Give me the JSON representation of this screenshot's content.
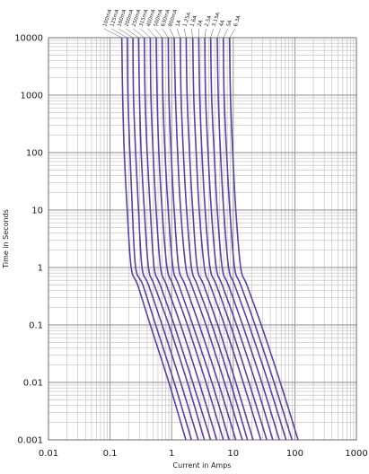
{
  "chart_data": {
    "type": "line",
    "title": "",
    "xlabel": "Current in Amps",
    "ylabel": "Time in Seconds",
    "x_scale": "log",
    "y_scale": "log",
    "xlim": [
      0.01,
      1000
    ],
    "ylim": [
      0.001,
      10000
    ],
    "x_ticks": [
      "0.01",
      "0.1",
      "1",
      "10",
      "100",
      "1000"
    ],
    "y_ticks": [
      "10000",
      "1000",
      "100",
      "10",
      "1",
      "0.1",
      "0.01",
      "0.001"
    ],
    "grid": true,
    "line_color": "#5b3fa6",
    "series": [
      {
        "name": "100mA",
        "points": [
          [
            0.155,
            10000
          ],
          [
            0.16,
            1000
          ],
          [
            0.17,
            100
          ],
          [
            0.19,
            10
          ],
          [
            0.22,
            1
          ],
          [
            0.28,
            0.5
          ],
          [
            0.45,
            0.1
          ],
          [
            0.9,
            0.01
          ],
          [
            1.7,
            0.001
          ]
        ]
      },
      {
        "name": "125mA",
        "points": [
          [
            0.19,
            10000
          ],
          [
            0.195,
            1000
          ],
          [
            0.21,
            100
          ],
          [
            0.23,
            10
          ],
          [
            0.26,
            1
          ],
          [
            0.34,
            0.5
          ],
          [
            0.55,
            0.1
          ],
          [
            1.1,
            0.01
          ],
          [
            2.1,
            0.001
          ]
        ]
      },
      {
        "name": "160mA",
        "points": [
          [
            0.235,
            10000
          ],
          [
            0.24,
            1000
          ],
          [
            0.26,
            100
          ],
          [
            0.29,
            10
          ],
          [
            0.33,
            1
          ],
          [
            0.42,
            0.5
          ],
          [
            0.7,
            0.1
          ],
          [
            1.4,
            0.01
          ],
          [
            2.7,
            0.001
          ]
        ]
      },
      {
        "name": "200mA",
        "points": [
          [
            0.29,
            10000
          ],
          [
            0.3,
            1000
          ],
          [
            0.32,
            100
          ],
          [
            0.36,
            10
          ],
          [
            0.42,
            1
          ],
          [
            0.52,
            0.5
          ],
          [
            0.9,
            0.1
          ],
          [
            1.8,
            0.01
          ],
          [
            3.4,
            0.001
          ]
        ]
      },
      {
        "name": "250mA",
        "points": [
          [
            0.36,
            10000
          ],
          [
            0.37,
            1000
          ],
          [
            0.4,
            100
          ],
          [
            0.45,
            10
          ],
          [
            0.52,
            1
          ],
          [
            0.65,
            0.5
          ],
          [
            1.1,
            0.1
          ],
          [
            2.2,
            0.01
          ],
          [
            4.3,
            0.001
          ]
        ]
      },
      {
        "name": "315mA",
        "points": [
          [
            0.45,
            10000
          ],
          [
            0.46,
            1000
          ],
          [
            0.5,
            100
          ],
          [
            0.56,
            10
          ],
          [
            0.66,
            1
          ],
          [
            0.82,
            0.5
          ],
          [
            1.4,
            0.1
          ],
          [
            2.8,
            0.01
          ],
          [
            5.4,
            0.001
          ]
        ]
      },
      {
        "name": "400mA",
        "points": [
          [
            0.56,
            10000
          ],
          [
            0.58,
            1000
          ],
          [
            0.62,
            100
          ],
          [
            0.7,
            10
          ],
          [
            0.84,
            1
          ],
          [
            1.05,
            0.5
          ],
          [
            1.8,
            0.1
          ],
          [
            3.6,
            0.01
          ],
          [
            6.9,
            0.001
          ]
        ]
      },
      {
        "name": "500mA",
        "points": [
          [
            0.7,
            10000
          ],
          [
            0.72,
            1000
          ],
          [
            0.78,
            100
          ],
          [
            0.88,
            10
          ],
          [
            1.05,
            1
          ],
          [
            1.3,
            0.5
          ],
          [
            2.2,
            0.1
          ],
          [
            4.5,
            0.01
          ],
          [
            8.6,
            0.001
          ]
        ]
      },
      {
        "name": "630mA",
        "points": [
          [
            0.88,
            10000
          ],
          [
            0.9,
            1000
          ],
          [
            0.98,
            100
          ],
          [
            1.1,
            10
          ],
          [
            1.3,
            1
          ],
          [
            1.65,
            0.5
          ],
          [
            2.8,
            0.1
          ],
          [
            5.7,
            0.01
          ],
          [
            11,
            0.001
          ]
        ]
      },
      {
        "name": "800mA",
        "points": [
          [
            1.1,
            10000
          ],
          [
            1.15,
            1000
          ],
          [
            1.25,
            100
          ],
          [
            1.4,
            10
          ],
          [
            1.7,
            1
          ],
          [
            2.1,
            0.5
          ],
          [
            3.6,
            0.1
          ],
          [
            7.2,
            0.01
          ],
          [
            14,
            0.001
          ]
        ]
      },
      {
        "name": "1A",
        "points": [
          [
            1.38,
            10000
          ],
          [
            1.42,
            1000
          ],
          [
            1.55,
            100
          ],
          [
            1.75,
            10
          ],
          [
            2.1,
            1
          ],
          [
            2.6,
            0.5
          ],
          [
            4.5,
            0.1
          ],
          [
            9,
            0.01
          ],
          [
            17,
            0.001
          ]
        ]
      },
      {
        "name": "1.25A",
        "points": [
          [
            1.72,
            10000
          ],
          [
            1.78,
            1000
          ],
          [
            1.95,
            100
          ],
          [
            2.2,
            10
          ],
          [
            2.6,
            1
          ],
          [
            3.3,
            0.5
          ],
          [
            5.6,
            0.1
          ],
          [
            11,
            0.01
          ],
          [
            21,
            0.001
          ]
        ]
      },
      {
        "name": "1.6A",
        "points": [
          [
            2.2,
            10000
          ],
          [
            2.28,
            1000
          ],
          [
            2.5,
            100
          ],
          [
            2.8,
            10
          ],
          [
            3.4,
            1
          ],
          [
            4.2,
            0.5
          ],
          [
            7.2,
            0.1
          ],
          [
            14.5,
            0.01
          ],
          [
            28,
            0.001
          ]
        ]
      },
      {
        "name": "2A",
        "points": [
          [
            2.75,
            10000
          ],
          [
            2.85,
            1000
          ],
          [
            3.1,
            100
          ],
          [
            3.5,
            10
          ],
          [
            4.2,
            1
          ],
          [
            5.3,
            0.5
          ],
          [
            9,
            0.1
          ],
          [
            18,
            0.01
          ],
          [
            35,
            0.001
          ]
        ]
      },
      {
        "name": "2.5A",
        "points": [
          [
            3.45,
            10000
          ],
          [
            3.55,
            1000
          ],
          [
            3.9,
            100
          ],
          [
            4.4,
            10
          ],
          [
            5.3,
            1
          ],
          [
            6.6,
            0.5
          ],
          [
            11.3,
            0.1
          ],
          [
            23,
            0.01
          ],
          [
            44,
            0.001
          ]
        ]
      },
      {
        "name": "3.15A",
        "points": [
          [
            4.3,
            10000
          ],
          [
            4.45,
            1000
          ],
          [
            4.9,
            100
          ],
          [
            5.5,
            10
          ],
          [
            6.6,
            1
          ],
          [
            8.3,
            0.5
          ],
          [
            14.2,
            0.1
          ],
          [
            29,
            0.01
          ],
          [
            56,
            0.001
          ]
        ]
      },
      {
        "name": "4A",
        "points": [
          [
            5.5,
            10000
          ],
          [
            5.7,
            1000
          ],
          [
            6.2,
            100
          ],
          [
            7,
            10
          ],
          [
            8.4,
            1
          ],
          [
            10.5,
            0.5
          ],
          [
            18,
            0.1
          ],
          [
            37,
            0.01
          ],
          [
            72,
            0.001
          ]
        ]
      },
      {
        "name": "5A",
        "points": [
          [
            6.9,
            10000
          ],
          [
            7.1,
            1000
          ],
          [
            7.8,
            100
          ],
          [
            8.8,
            10
          ],
          [
            10.5,
            1
          ],
          [
            13.2,
            0.5
          ],
          [
            22.6,
            0.1
          ],
          [
            46,
            0.01
          ],
          [
            90,
            0.001
          ]
        ]
      },
      {
        "name": "6.3A",
        "points": [
          [
            8.7,
            10000
          ],
          [
            9,
            1000
          ],
          [
            9.8,
            100
          ],
          [
            11,
            10
          ],
          [
            13.2,
            1
          ],
          [
            16.6,
            0.5
          ],
          [
            28.5,
            0.1
          ],
          [
            58,
            0.01
          ],
          [
            113,
            0.001
          ]
        ]
      }
    ]
  }
}
